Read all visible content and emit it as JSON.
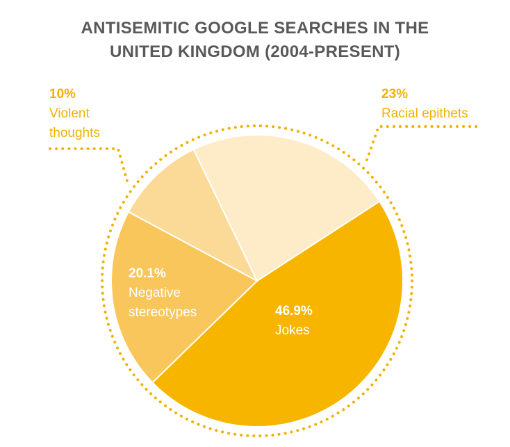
{
  "chart_data": {
    "type": "pie",
    "title_lines": [
      "ANTISEMITIC GOOGLE SEARCHES IN THE",
      "UNITED KINGDOM (2004-PRESENT)"
    ],
    "slices": [
      {
        "label_lines": [
          "Jokes"
        ],
        "percent_text": "46.9%",
        "value": 46.9,
        "color": "#f7b500",
        "label_color": "#ffffff",
        "label_inside": true
      },
      {
        "label_lines": [
          "Negative",
          "stereotypes"
        ],
        "percent_text": "20.1%",
        "value": 20.1,
        "color": "#f8c65a",
        "label_color": "#ffffff",
        "label_inside": true
      },
      {
        "label_lines": [
          "Violent",
          "thoughts"
        ],
        "percent_text": "10%",
        "value": 10,
        "color": "#fbd996",
        "label_color": "#f2b100",
        "label_inside": false
      },
      {
        "label_lines": [
          "Racial epithets"
        ],
        "percent_text": "23%",
        "value": 23,
        "color": "#feebc8",
        "label_color": "#f2b100",
        "label_inside": false
      }
    ],
    "dotted_outline_color": "#f2b100"
  }
}
